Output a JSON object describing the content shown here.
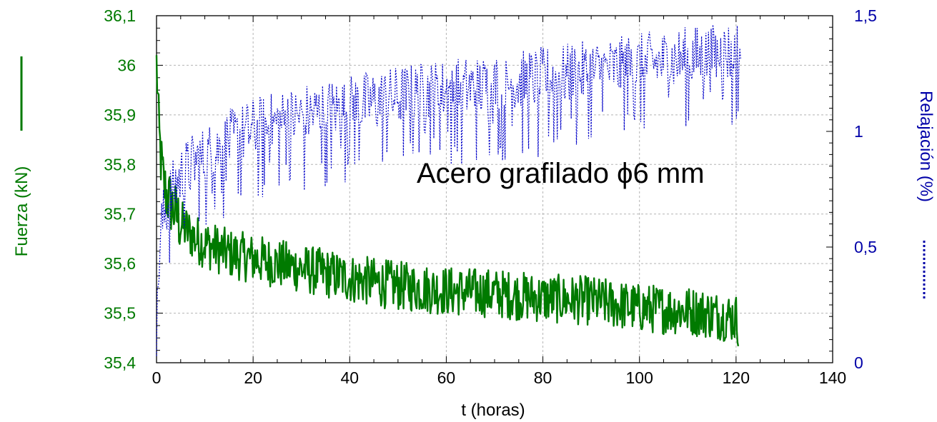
{
  "chart_data": {
    "type": "line",
    "xlabel": "t (horas)",
    "ylabel_left": "Fuerza (kN)",
    "ylabel_right": "Relajación (%)",
    "annotation": "Acero grafilado ϕ6 mm",
    "xlim": [
      0,
      140
    ],
    "ylim_left": [
      35.4,
      36.1
    ],
    "ylim_right": [
      0,
      1.5
    ],
    "grid": true,
    "x_ticks": [
      "0",
      "20",
      "40",
      "60",
      "80",
      "100",
      "120",
      "140"
    ],
    "y_left_ticks": [
      "35,4",
      "35,5",
      "35,6",
      "35,7",
      "35,8",
      "35,9",
      "36",
      "36,1"
    ],
    "y_right_ticks": [
      "0",
      "0,5",
      "1",
      "1,5"
    ],
    "colors": {
      "fuerza": "#007a00",
      "relajacion": "#0000c8",
      "grid": "#b4b4b4"
    },
    "series": [
      {
        "axis": "left",
        "style": "solid",
        "color": "#007a00",
        "x": [
          0,
          0.2,
          0.5,
          1,
          1.5,
          2,
          3,
          4,
          5,
          6,
          8,
          10,
          15,
          20,
          25,
          30,
          40,
          50,
          60,
          70,
          80,
          90,
          100,
          110,
          120,
          120.5
        ],
        "y": [
          36.0,
          35.96,
          35.86,
          35.8,
          35.76,
          35.74,
          35.72,
          35.7,
          35.68,
          35.67,
          35.65,
          35.64,
          35.62,
          35.61,
          35.6,
          35.59,
          35.57,
          35.555,
          35.545,
          35.54,
          35.53,
          35.525,
          35.51,
          35.505,
          35.49,
          35.48
        ],
        "noise_amplitude": 0.05
      },
      {
        "axis": "right",
        "style": "dotted",
        "color": "#0000c8",
        "x": [
          0,
          0.5,
          1,
          2,
          3,
          5,
          8,
          10,
          15,
          20,
          25,
          30,
          40,
          50,
          60,
          70,
          80,
          90,
          100,
          110,
          115,
          120,
          121
        ],
        "y": [
          0.1,
          0.45,
          0.6,
          0.68,
          0.74,
          0.82,
          0.88,
          0.9,
          0.97,
          1.02,
          1.05,
          1.08,
          1.12,
          1.16,
          1.19,
          1.21,
          1.24,
          1.27,
          1.3,
          1.33,
          1.34,
          1.36,
          1.36
        ],
        "noise_amplitude": 0.14
      }
    ]
  }
}
